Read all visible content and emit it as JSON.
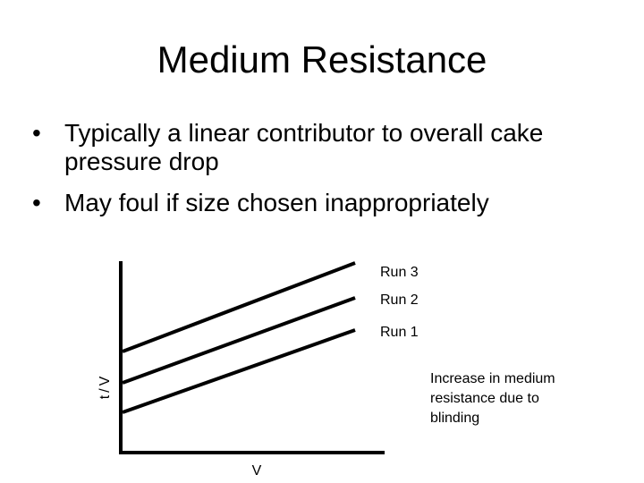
{
  "slide": {
    "title": "Medium Resistance",
    "bullets": [
      "Typically a linear contributor to overall cake pressure drop",
      "May foul if size chosen inappropriately"
    ]
  },
  "diagram": {
    "y_axis_label": "t/V",
    "x_axis_label": "V",
    "runs": [
      "Run 3",
      "Run 2",
      "Run 1"
    ],
    "annotation": "Increase in medium resistance due to blinding"
  },
  "colors": {
    "ink": "#000000",
    "background": "#ffffff"
  }
}
